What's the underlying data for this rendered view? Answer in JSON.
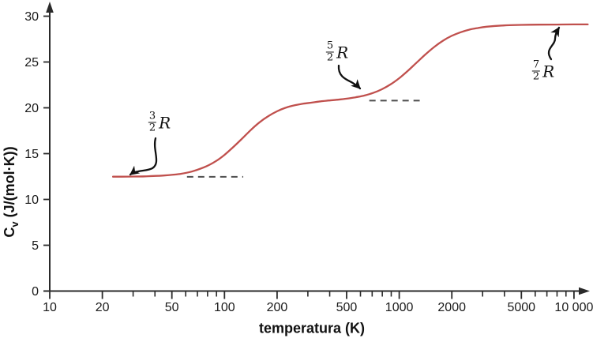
{
  "chart_data": {
    "type": "line",
    "title": "",
    "xlabel": "temperatura (K)",
    "ylabel": "Cv (J/(mol·K))",
    "ylabel_parts": {
      "symbol": "C",
      "subscript": "v",
      "units": " (J/(mol·K))"
    },
    "x_scale": "log",
    "xlim": [
      10,
      12000
    ],
    "ylim": [
      0,
      31
    ],
    "grid": false,
    "legend": false,
    "y_ticks": [
      0,
      5,
      10,
      15,
      20,
      25,
      30
    ],
    "x_ticks_labeled": {
      "values": [
        10,
        20,
        50,
        100,
        200,
        500,
        1000,
        2000,
        5000,
        10000
      ],
      "labels": [
        "10",
        "20",
        "50",
        "100",
        "200",
        "500",
        "1000",
        "2000",
        "5000",
        "10 000"
      ]
    },
    "x_minor_tick_decades": [
      10,
      100,
      1000
    ],
    "curve_color": "#c0504d",
    "series": [
      {
        "points": [
          [
            23,
            12.48
          ],
          [
            28,
            12.49
          ],
          [
            35,
            12.52
          ],
          [
            45,
            12.61
          ],
          [
            55,
            12.77
          ],
          [
            65,
            13.04
          ],
          [
            79,
            13.63
          ],
          [
            89,
            14.16
          ],
          [
            100,
            14.86
          ],
          [
            112,
            15.7
          ],
          [
            126,
            16.63
          ],
          [
            141,
            17.55
          ],
          [
            158,
            18.39
          ],
          [
            178,
            19.09
          ],
          [
            200,
            19.62
          ],
          [
            224,
            20.01
          ],
          [
            251,
            20.27
          ],
          [
            282,
            20.45
          ],
          [
            316,
            20.57
          ],
          [
            355,
            20.71
          ],
          [
            398,
            20.8
          ],
          [
            447,
            20.89
          ],
          [
            501,
            21.0
          ],
          [
            562,
            21.15
          ],
          [
            631,
            21.34
          ],
          [
            708,
            21.62
          ],
          [
            794,
            22.02
          ],
          [
            891,
            22.55
          ],
          [
            1000,
            23.23
          ],
          [
            1122,
            24.05
          ],
          [
            1259,
            24.94
          ],
          [
            1413,
            25.83
          ],
          [
            1585,
            26.64
          ],
          [
            1778,
            27.32
          ],
          [
            1995,
            27.85
          ],
          [
            2239,
            28.24
          ],
          [
            2512,
            28.53
          ],
          [
            2818,
            28.71
          ],
          [
            3162,
            28.85
          ],
          [
            3981,
            28.99
          ],
          [
            5012,
            29.05
          ],
          [
            6310,
            29.08
          ],
          [
            7943,
            29.09
          ],
          [
            10000,
            29.1
          ],
          [
            12000,
            29.1
          ]
        ]
      }
    ],
    "dashed_guides": [
      {
        "cv": 12.47,
        "t_start": 61,
        "t_end": 128
      },
      {
        "cv": 20.79,
        "t_start": 674,
        "t_end": 1310
      }
    ],
    "annotations": [
      {
        "numerator": "3",
        "denominator": "2",
        "symbol": "R",
        "plateau_cv": 12.47
      },
      {
        "numerator": "5",
        "denominator": "2",
        "symbol": "R",
        "plateau_cv": 20.79
      },
      {
        "numerator": "7",
        "denominator": "2",
        "symbol": "R",
        "plateau_cv": 29.1
      }
    ]
  },
  "colors": {
    "curve": "#c0504d",
    "axis": "#2a2a2a",
    "dash": "#4d4d4d",
    "text": "#1a1a1a",
    "annotation": "#111111"
  }
}
